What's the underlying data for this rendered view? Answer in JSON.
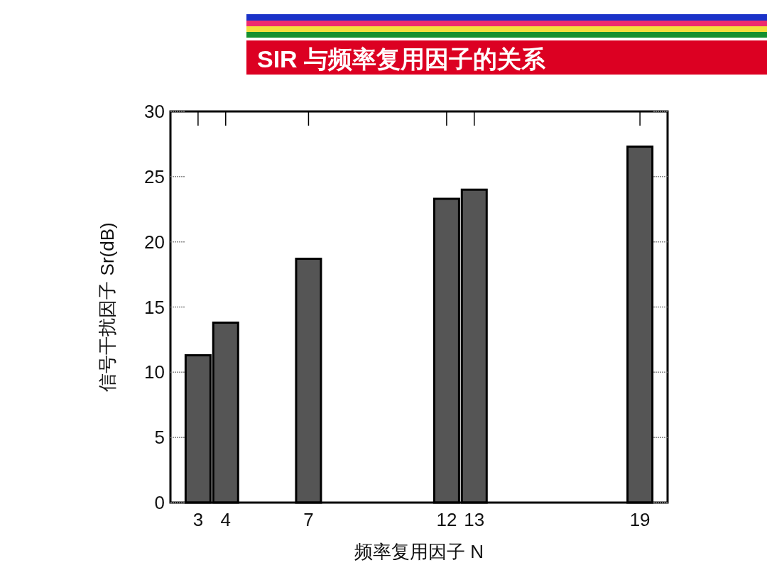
{
  "chart_data": {
    "type": "bar",
    "title": "SIR 与频率复用因子的关系",
    "xlabel": "频率复用因子 N",
    "ylabel": "信号干扰因子 Sr(dB)",
    "x": [
      3,
      4,
      7,
      12,
      13,
      19
    ],
    "values": [
      11.3,
      13.8,
      18.7,
      23.3,
      24.0,
      27.3
    ],
    "color": "#555555",
    "xlim": [
      2,
      20
    ],
    "xticks": [
      3,
      4,
      7,
      12,
      13,
      19
    ],
    "ylim": [
      0,
      30
    ],
    "yticks": [
      0,
      5,
      10,
      15,
      20,
      25,
      30
    ]
  }
}
